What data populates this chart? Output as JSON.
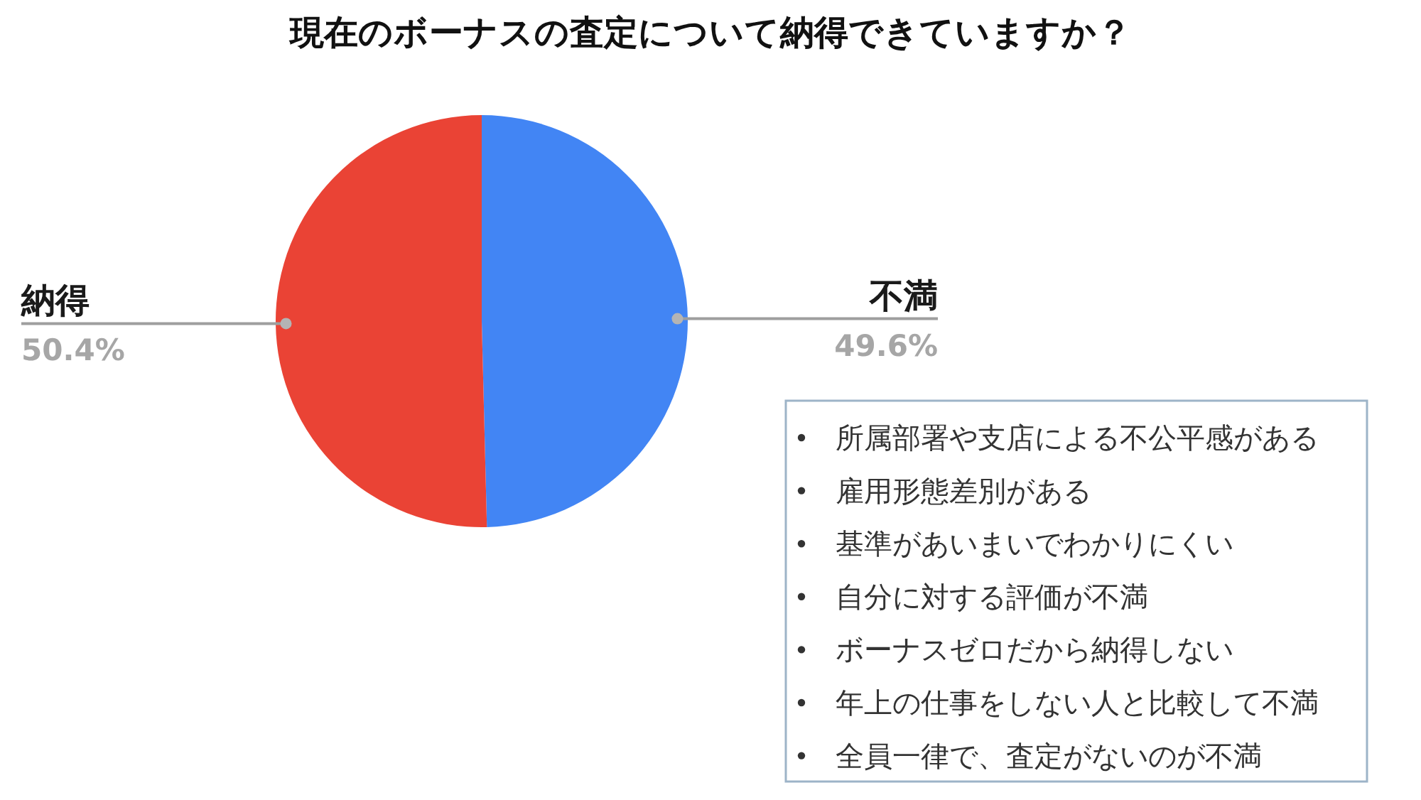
{
  "chart_data": {
    "type": "pie",
    "title": "現在のボーナスの査定について納得できていますか？",
    "categories": [
      "不満",
      "納得"
    ],
    "values": [
      49.6,
      50.4
    ],
    "colors": [
      "#4285f4",
      "#ea4335"
    ],
    "value_labels": [
      "49.6%",
      "50.4%"
    ],
    "annotations": [
      "所属部署や支店による不公平感がある",
      "雇用形態差別がある",
      "基準があいまいでわかりにくい",
      "自分に対する評価が不満",
      "ボーナスゼロだから納得しない",
      "年上の仕事をしない人と比較して不満",
      "全員一律で、査定がないのが不満"
    ]
  }
}
